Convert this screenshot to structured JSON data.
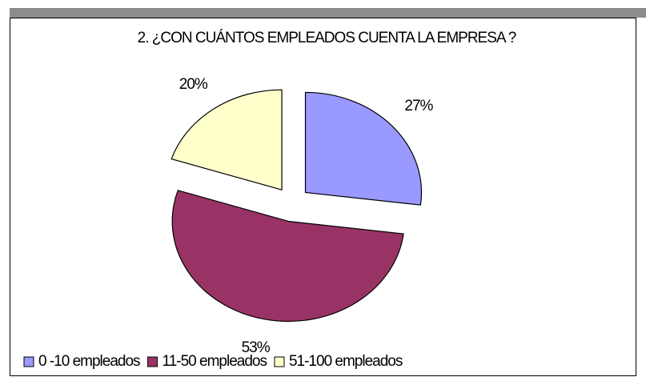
{
  "chart_data": {
    "type": "pie",
    "title": "2. ¿CON CUÁNTOS EMPLEADOS CUENTA LA EMPRESA ?",
    "categories": [
      "0 -10 empleados",
      "11-50 empleados",
      "51-100 empleados"
    ],
    "values": [
      27,
      53,
      20
    ],
    "value_labels": [
      "27%",
      "53%",
      "20%"
    ],
    "colors": [
      "#9999ff",
      "#993366",
      "#ffffcc"
    ],
    "legend": "bottom"
  }
}
